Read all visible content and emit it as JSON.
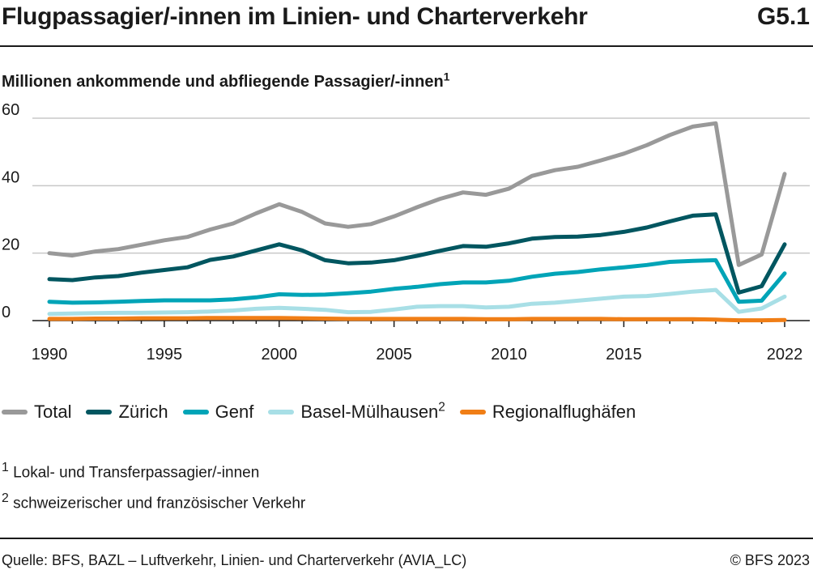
{
  "header": {
    "title": "Flugpassagier/-innen im Linien- und Charterverkehr",
    "code": "G5.1"
  },
  "subtitle": {
    "text": "Millionen ankommende und abfliegende Passagier/-innen",
    "note_ref": "1"
  },
  "chart_data": {
    "type": "line",
    "title": "Flugpassagier/-innen im Linien- und Charterverkehr",
    "ylabel": "Millionen ankommende und abfliegende Passagier/-innen",
    "xlabel": "",
    "ylim": [
      0,
      60
    ],
    "yticks": [
      0,
      20,
      40,
      60
    ],
    "xlim": [
      1990,
      2022
    ],
    "xticks": [
      1990,
      1995,
      2000,
      2005,
      2010,
      2015,
      2022
    ],
    "grid": true,
    "legend_position": "bottom",
    "x": [
      1990,
      1991,
      1992,
      1993,
      1994,
      1995,
      1996,
      1997,
      1998,
      1999,
      2000,
      2001,
      2002,
      2003,
      2004,
      2005,
      2006,
      2007,
      2008,
      2009,
      2010,
      2011,
      2012,
      2013,
      2014,
      2015,
      2016,
      2017,
      2018,
      2019,
      2020,
      2021,
      2022
    ],
    "series": [
      {
        "name": "Total",
        "color": "#999999",
        "values": [
          20.0,
          19.3,
          20.5,
          21.2,
          22.5,
          23.8,
          24.8,
          27.0,
          28.8,
          31.8,
          34.5,
          32.2,
          28.8,
          27.8,
          28.6,
          30.9,
          33.6,
          36.1,
          38.0,
          37.3,
          39.1,
          42.9,
          44.6,
          45.6,
          47.5,
          49.5,
          52.0,
          55.0,
          57.5,
          58.5,
          16.5,
          19.6,
          43.5
        ]
      },
      {
        "name": "Zürich",
        "color": "#015660",
        "values": [
          12.3,
          12.0,
          12.8,
          13.2,
          14.2,
          15.0,
          15.8,
          18.0,
          19.0,
          20.8,
          22.6,
          20.8,
          17.9,
          17.0,
          17.2,
          17.9,
          19.2,
          20.7,
          22.1,
          21.9,
          22.9,
          24.3,
          24.8,
          24.9,
          25.4,
          26.3,
          27.6,
          29.4,
          31.1,
          31.5,
          8.3,
          10.2,
          22.6
        ]
      },
      {
        "name": "Genf",
        "color": "#00a4b7",
        "values": [
          5.6,
          5.3,
          5.4,
          5.6,
          5.8,
          6.0,
          6.0,
          6.0,
          6.3,
          6.9,
          7.8,
          7.6,
          7.7,
          8.1,
          8.6,
          9.4,
          10.0,
          10.8,
          11.3,
          11.3,
          11.8,
          13.0,
          13.9,
          14.4,
          15.2,
          15.8,
          16.5,
          17.4,
          17.7,
          17.9,
          5.6,
          5.9,
          14.0
        ]
      },
      {
        "name": "Basel-Mülhausen",
        "color": "#a8dfe6",
        "note_ref": "2",
        "values": [
          2.0,
          2.1,
          2.2,
          2.3,
          2.3,
          2.4,
          2.5,
          2.7,
          3.0,
          3.5,
          3.8,
          3.5,
          3.2,
          2.5,
          2.6,
          3.3,
          4.1,
          4.3,
          4.3,
          3.9,
          4.1,
          5.0,
          5.3,
          5.9,
          6.5,
          7.1,
          7.3,
          7.9,
          8.6,
          9.1,
          2.6,
          3.6,
          7.1
        ]
      },
      {
        "name": "Regionalflughäfen",
        "color": "#f07e16",
        "values": [
          0.5,
          0.5,
          0.6,
          0.6,
          0.7,
          0.7,
          0.7,
          0.8,
          0.8,
          0.8,
          0.8,
          0.7,
          0.6,
          0.5,
          0.5,
          0.5,
          0.5,
          0.5,
          0.5,
          0.4,
          0.4,
          0.5,
          0.5,
          0.5,
          0.5,
          0.4,
          0.4,
          0.4,
          0.4,
          0.3,
          0.1,
          0.1,
          0.2
        ]
      }
    ]
  },
  "legend": {
    "items": [
      {
        "label": "Total",
        "color": "#999999"
      },
      {
        "label": "Zürich",
        "color": "#015660"
      },
      {
        "label": "Genf",
        "color": "#00a4b7"
      },
      {
        "label": "Basel-Mülhausen",
        "color": "#a8dfe6",
        "sup": "2"
      },
      {
        "label": "Regionalflughäfen",
        "color": "#f07e16"
      }
    ]
  },
  "notes": {
    "n1_ref": "1",
    "n1_text": "Lokal- und Transferpassagier/-innen",
    "n2_ref": "2",
    "n2_text": "schweizerischer und französischer Verkehr"
  },
  "footer": {
    "source": "Quelle: BFS, BAZL – Luftverkehr, Linien- und Charterverkehr (AVIA_LC)",
    "copyright": "© BFS 2023"
  }
}
